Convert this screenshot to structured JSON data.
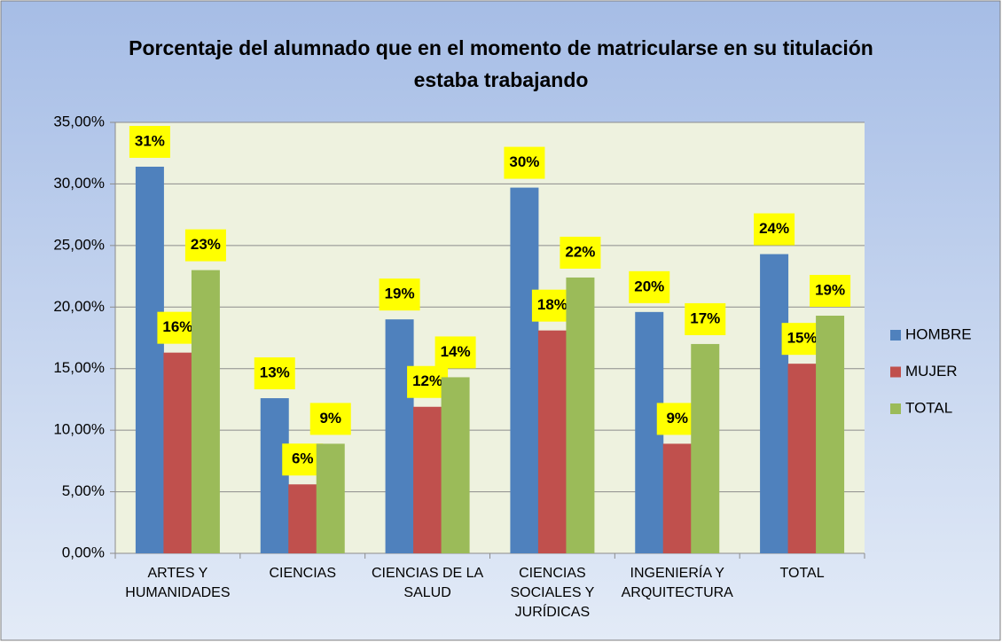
{
  "chart_data": {
    "type": "bar",
    "title": "Porcentaje del alumnado que en el momento de matricularse  en su titulación estaba trabajando",
    "categories": [
      "ARTES Y HUMANIDADES",
      "CIENCIAS",
      "CIENCIAS DE LA SALUD",
      "CIENCIAS SOCIALES Y JURÍDICAS",
      "INGENIERÍA Y ARQUITECTURA",
      "TOTAL"
    ],
    "series": [
      {
        "name": "HOMBRE",
        "color": "#4f81bd",
        "values": [
          31.4,
          12.6,
          19.0,
          29.7,
          19.6,
          24.3
        ],
        "value_labels": [
          "31%",
          "13%",
          "19%",
          "30%",
          "20%",
          "24%"
        ]
      },
      {
        "name": "MUJER",
        "color": "#c0504d",
        "values": [
          16.3,
          5.6,
          11.9,
          18.1,
          8.9,
          15.4
        ],
        "value_labels": [
          "16%",
          "6%",
          "12%",
          "18%",
          "9%",
          "15%"
        ]
      },
      {
        "name": "TOTAL",
        "color": "#9bbb59",
        "values": [
          23.0,
          8.9,
          14.3,
          22.4,
          17.0,
          19.3
        ],
        "value_labels": [
          "23%",
          "9%",
          "14%",
          "22%",
          "17%",
          "19%"
        ]
      }
    ],
    "ylim": [
      0,
      35
    ],
    "yticks": [
      {
        "value": 0,
        "label": "0,00%"
      },
      {
        "value": 5,
        "label": "5,00%"
      },
      {
        "value": 10,
        "label": "10,00%"
      },
      {
        "value": 15,
        "label": "15,00%"
      },
      {
        "value": 20,
        "label": "20,00%"
      },
      {
        "value": 25,
        "label": "25,00%"
      },
      {
        "value": 30,
        "label": "30,00%"
      },
      {
        "value": 35,
        "label": "35,00%"
      }
    ],
    "grid": true,
    "legend": "right"
  }
}
